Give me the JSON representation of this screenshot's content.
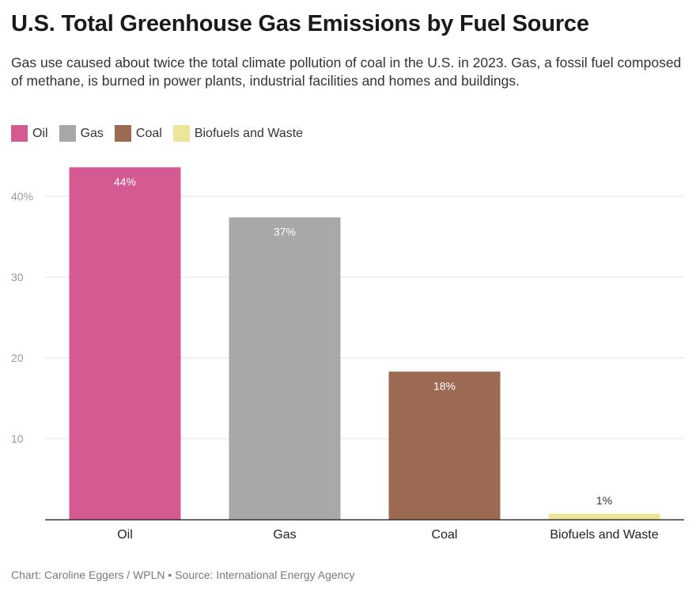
{
  "title": "U.S. Total Greenhouse Gas Emissions by Fuel Source",
  "subtitle": "Gas use caused about twice the total climate pollution of coal in the U.S. in 2023. Gas, a fossil fuel composed of methane, is burned in power plants, industrial facilities and homes and buildings.",
  "legend": [
    {
      "label": "Oil",
      "color": "#d45a91"
    },
    {
      "label": "Gas",
      "color": "#a8a8a8"
    },
    {
      "label": "Coal",
      "color": "#9c6a53"
    },
    {
      "label": "Biofuels and Waste",
      "color": "#ece59a"
    }
  ],
  "footer": "Chart: Caroline Eggers / WPLN • Source: International Energy Agency",
  "chart_data": {
    "type": "bar",
    "categories": [
      "Oil",
      "Gas",
      "Coal",
      "Biofuels and Waste"
    ],
    "values": [
      43.6,
      37.4,
      18.3,
      0.7
    ],
    "data_labels": [
      "44%",
      "37%",
      "18%",
      "1%"
    ],
    "colors": [
      "#d45a91",
      "#a8a8a8",
      "#9c6a53",
      "#ece59a"
    ],
    "y_ticks": [
      10,
      20,
      30,
      40
    ],
    "y_tick_labels": [
      "10",
      "20",
      "30",
      "40%"
    ],
    "ylim": [
      0,
      50
    ],
    "grid": true,
    "legend_position": "top-left"
  }
}
